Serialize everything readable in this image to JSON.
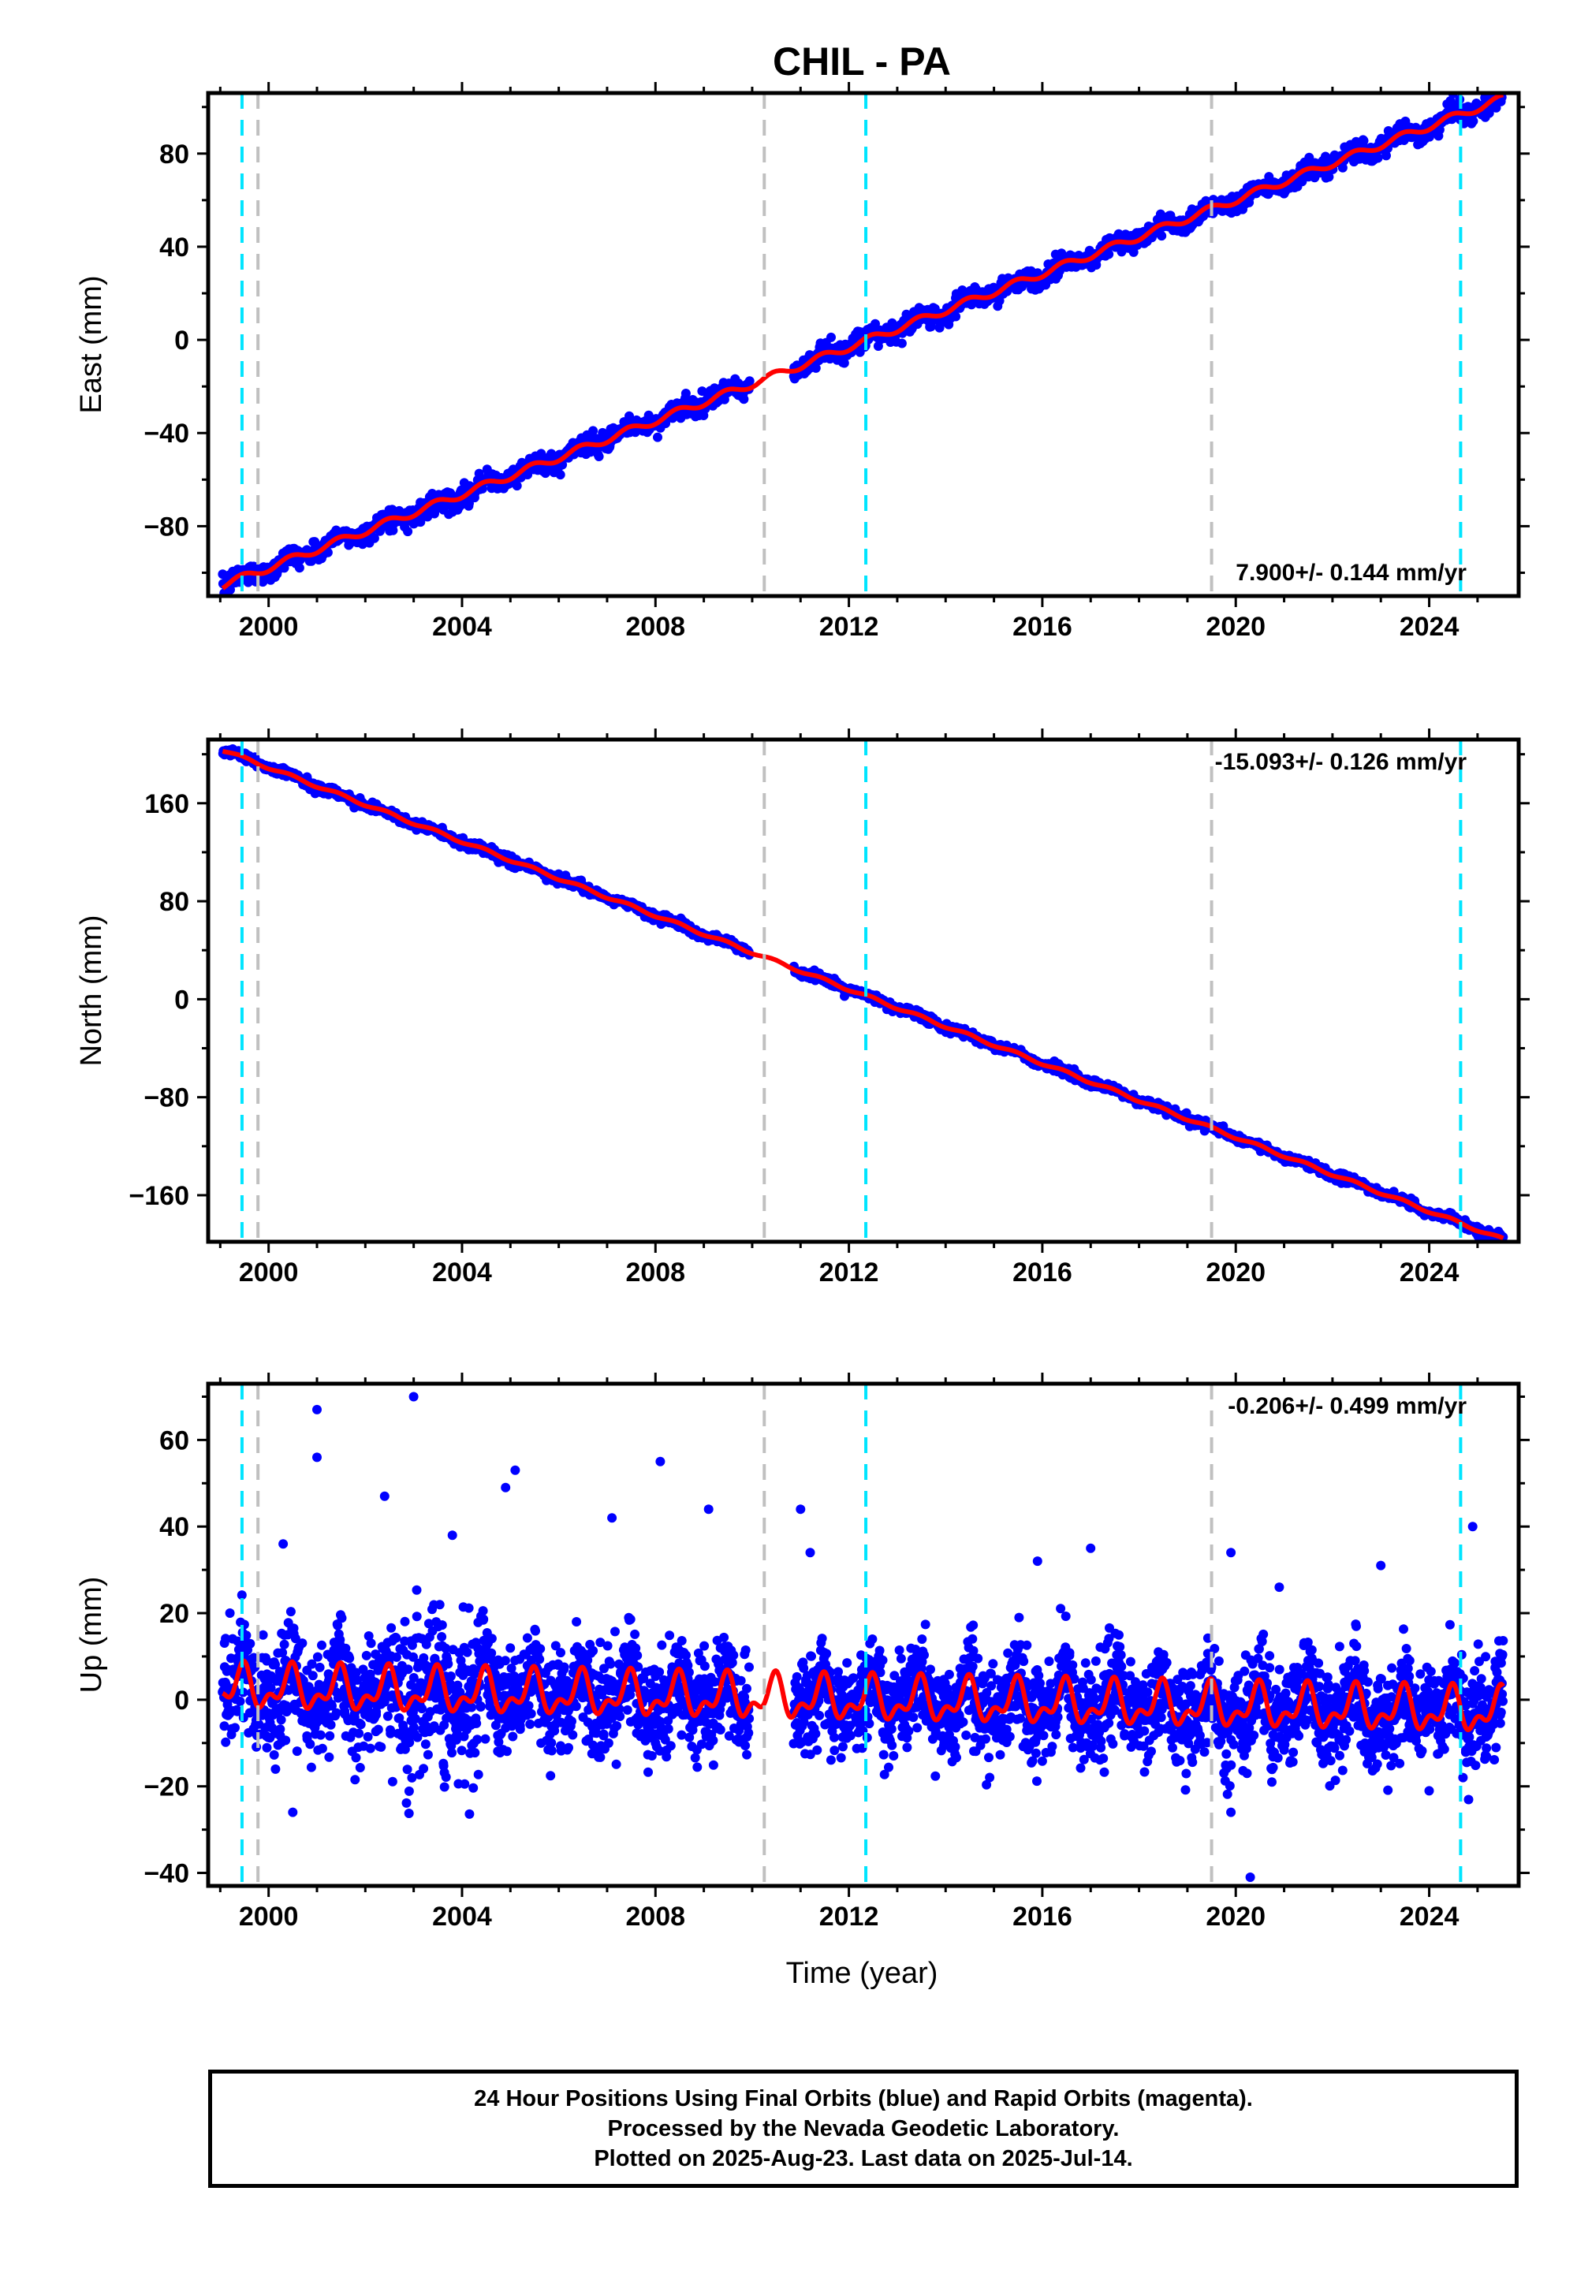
{
  "title": "CHIL - PA",
  "xlabel": "Time (year)",
  "colors": {
    "final_orbits": "#0000ff",
    "model": "#ff0000",
    "cyan_events": "#00e5ff",
    "gray_events": "#c0c0c0",
    "frame": "#000000"
  },
  "footer": {
    "line1": "24 Hour Positions Using Final Orbits (blue) and Rapid Orbits (magenta).",
    "line2": "Processed by the Nevada Geodetic Laboratory.",
    "line3": "Plotted on 2025-Aug-23. Last data on 2025-Jul-14."
  },
  "chart_data": [
    {
      "type": "scatter",
      "component": "East",
      "ylabel": "East (mm)",
      "velocity_label": "7.900+/- 0.144 mm/yr",
      "velocity_label_position": "bottom-right",
      "xlim": [
        1998.75,
        2025.85
      ],
      "ylim": [
        -110,
        106
      ],
      "xticks": [
        2000,
        2004,
        2008,
        2012,
        2016,
        2020,
        2024
      ],
      "yticks": [
        -80,
        -40,
        0,
        40,
        80
      ],
      "data_span": [
        1999.05,
        2025.53
      ],
      "data_gap": [
        2009.95,
        2010.85
      ],
      "model_trend": {
        "t0": 2012.2,
        "value_at_t0": -1.5,
        "rate_mm_per_yr": 7.9,
        "seasonal_amp": 1.6
      },
      "scatter_sd": 2.2,
      "cyan_events": [
        1999.45,
        2012.35,
        2024.65
      ],
      "gray_events": [
        1999.78,
        2010.25,
        2019.5
      ]
    },
    {
      "type": "scatter",
      "component": "North",
      "ylabel": "North (mm)",
      "velocity_label": "-15.093+/- 0.126 mm/yr",
      "velocity_label_position": "top-right",
      "xlim": [
        1998.75,
        2025.85
      ],
      "ylim": [
        -198,
        212
      ],
      "xticks": [
        2000,
        2004,
        2008,
        2012,
        2016,
        2020,
        2024
      ],
      "yticks": [
        -160,
        -80,
        0,
        80,
        160
      ],
      "data_span": [
        1999.05,
        2025.53
      ],
      "data_gap": [
        2009.95,
        2010.85
      ],
      "model_trend": {
        "t0": 2012.2,
        "value_at_t0": 5,
        "rate_mm_per_yr": -15.093,
        "seasonal_amp": 1.2
      },
      "scatter_sd": 1.8,
      "cyan_events": [
        1999.45,
        2012.35,
        2024.65
      ],
      "gray_events": [
        1999.78,
        2010.25,
        2019.5
      ]
    },
    {
      "type": "scatter",
      "component": "Up",
      "ylabel": "Up (mm)",
      "velocity_label": "-0.206+/- 0.499 mm/yr",
      "velocity_label_position": "top-right",
      "xlim": [
        1998.75,
        2025.85
      ],
      "ylim": [
        -43,
        73
      ],
      "xticks": [
        2000,
        2004,
        2008,
        2012,
        2016,
        2020,
        2024
      ],
      "yticks": [
        -40,
        -20,
        0,
        20,
        40,
        60
      ],
      "data_span": [
        1999.05,
        2025.53
      ],
      "data_gap": [
        2009.95,
        2010.85
      ],
      "model_trend": {
        "t0": 2012.2,
        "value_at_t0": 0,
        "rate_mm_per_yr": -0.206,
        "seasonal_amp": 4
      },
      "scatter_sd": 5.5,
      "outliers": [
        {
          "x": 2003.0,
          "y": 70
        },
        {
          "x": 2001.0,
          "y": 67
        },
        {
          "x": 2001.0,
          "y": 56
        },
        {
          "x": 2008.1,
          "y": 55
        },
        {
          "x": 2005.1,
          "y": 53
        },
        {
          "x": 2004.9,
          "y": 49
        },
        {
          "x": 2002.4,
          "y": 47
        },
        {
          "x": 2011.0,
          "y": 44
        },
        {
          "x": 2009.1,
          "y": 44
        },
        {
          "x": 2007.1,
          "y": 42
        },
        {
          "x": 2024.9,
          "y": 40
        },
        {
          "x": 2003.8,
          "y": 38
        },
        {
          "x": 2000.3,
          "y": 36
        },
        {
          "x": 2017.0,
          "y": 35
        },
        {
          "x": 2019.9,
          "y": 34
        },
        {
          "x": 2011.2,
          "y": 34
        },
        {
          "x": 2015.9,
          "y": 32
        },
        {
          "x": 2023.0,
          "y": 31
        },
        {
          "x": 2020.9,
          "y": 26
        },
        {
          "x": 2019.9,
          "y": -26
        },
        {
          "x": 2020.3,
          "y": -41
        },
        {
          "x": 1999.2,
          "y": 20
        },
        {
          "x": 2000.5,
          "y": -26
        }
      ],
      "cyan_events": [
        1999.45,
        2012.35,
        2024.65
      ],
      "gray_events": [
        1999.78,
        2010.25,
        2019.5
      ]
    }
  ]
}
